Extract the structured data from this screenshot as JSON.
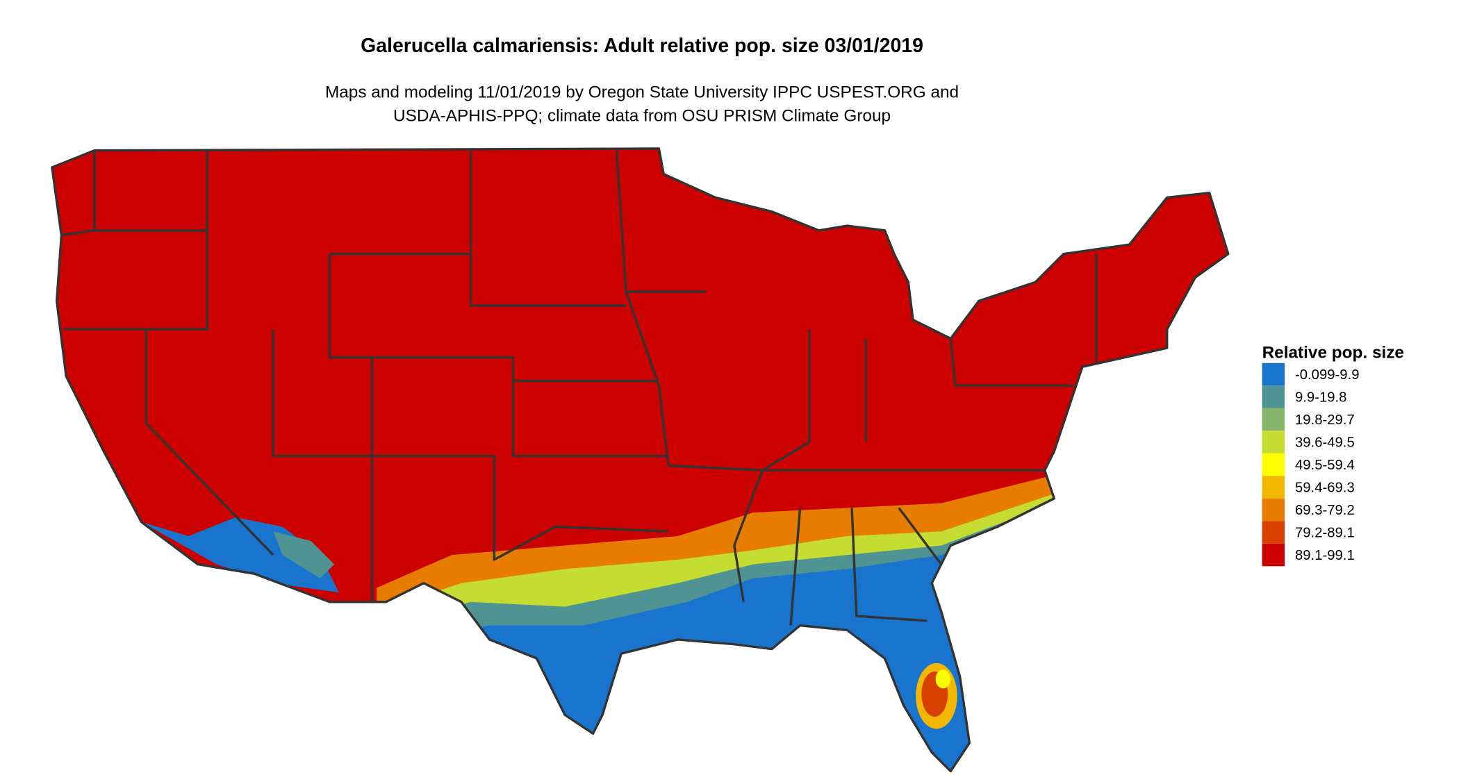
{
  "title": "Galerucella calmariensis: Adult relative pop. size 03/01/2019",
  "subtitle": [
    "Maps and modeling 11/01/2019 by Oregon State University IPPC USPEST.ORG and",
    "USDA-APHIS-PPQ; climate data from OSU PRISM Climate Group"
  ],
  "legend": {
    "title": "Relative pop. size",
    "items": [
      {
        "label": "-0.099-9.9",
        "color": "#1874cd"
      },
      {
        "label": "9.9-19.8",
        "color": "#4f9492"
      },
      {
        "label": "19.8-29.7",
        "color": "#86b46a"
      },
      {
        "label": "39.6-49.5",
        "color": "#c5dc30"
      },
      {
        "label": "49.5-59.4",
        "color": "#ffff00"
      },
      {
        "label": "59.4-69.3",
        "color": "#f2b800"
      },
      {
        "label": "69.3-79.2",
        "color": "#e77c00"
      },
      {
        "label": "79.2-89.1",
        "color": "#d84000"
      },
      {
        "label": "89.1-99.1",
        "color": "#cd0000"
      }
    ]
  }
}
